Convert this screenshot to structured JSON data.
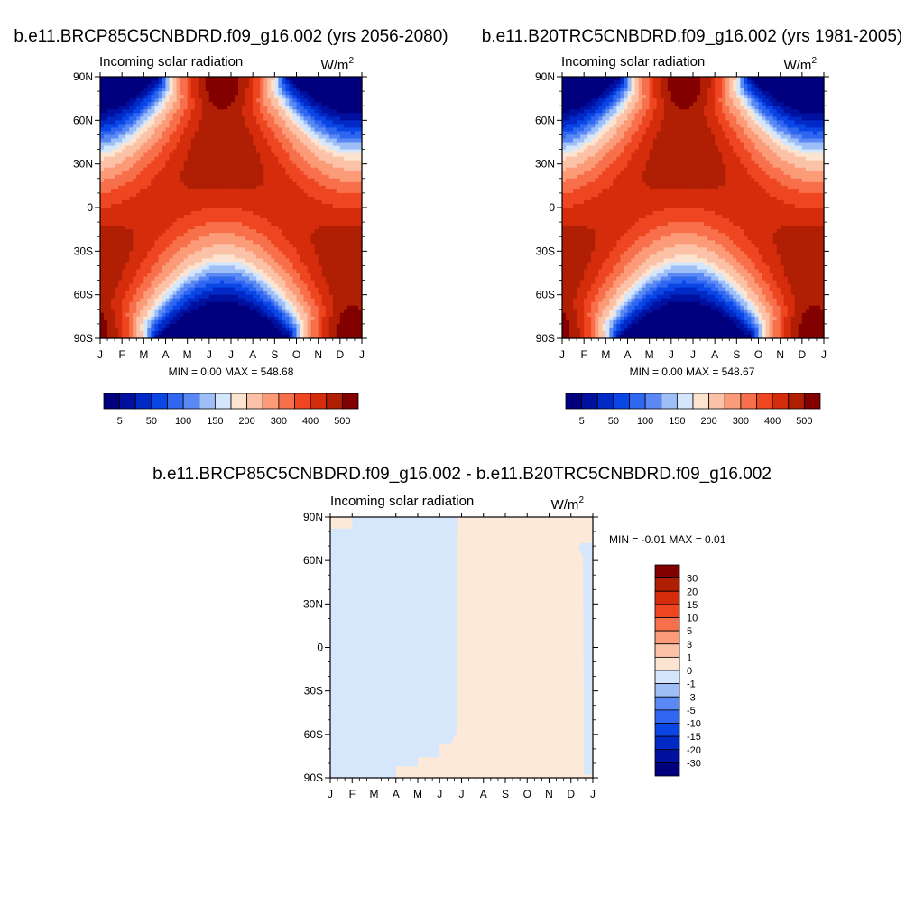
{
  "chart_data": [
    {
      "type": "heatmap",
      "title": "b.e11.BRCP85C5CNBDRD.f09_g16.002 (yrs 2056-2080)",
      "subtitle": "Incoming solar radiation",
      "units_base": "W/m",
      "units_exp": "2",
      "x_ticks": [
        "J",
        "F",
        "M",
        "A",
        "M",
        "J",
        "J",
        "A",
        "S",
        "O",
        "N",
        "D",
        "J"
      ],
      "y_ticks": [
        "90N",
        "60N",
        "30N",
        "0",
        "30S",
        "60S",
        "90S"
      ],
      "ylim": [
        -90,
        90
      ],
      "stats_text": "MIN =   0.00 MAX = 548.68",
      "colorbar_labels": [
        "5",
        "50",
        "100",
        "150",
        "200",
        "300",
        "400",
        "500"
      ],
      "colorbar_levels": [
        5,
        25,
        50,
        75,
        100,
        125,
        150,
        175,
        200,
        250,
        300,
        350,
        400,
        450,
        500
      ]
    },
    {
      "type": "heatmap",
      "title": "b.e11.B20TRC5CNBDRD.f09_g16.002 (yrs 1981-2005)",
      "subtitle": "Incoming solar radiation",
      "units_base": "W/m",
      "units_exp": "2",
      "x_ticks": [
        "J",
        "F",
        "M",
        "A",
        "M",
        "J",
        "J",
        "A",
        "S",
        "O",
        "N",
        "D",
        "J"
      ],
      "y_ticks": [
        "90N",
        "60N",
        "30N",
        "0",
        "30S",
        "60S",
        "90S"
      ],
      "ylim": [
        -90,
        90
      ],
      "stats_text": "MIN =   0.00 MAX = 548.67",
      "colorbar_labels": [
        "5",
        "50",
        "100",
        "150",
        "200",
        "300",
        "400",
        "500"
      ],
      "colorbar_levels": [
        5,
        25,
        50,
        75,
        100,
        125,
        150,
        175,
        200,
        250,
        300,
        350,
        400,
        450,
        500
      ]
    },
    {
      "type": "heatmap",
      "title": "b.e11.BRCP85C5CNBDRD.f09_g16.002 - b.e11.B20TRC5CNBDRD.f09_g16.002",
      "subtitle": "Incoming solar radiation",
      "units_base": "W/m",
      "units_exp": "2",
      "x_ticks": [
        "J",
        "F",
        "M",
        "A",
        "M",
        "J",
        "J",
        "A",
        "S",
        "O",
        "N",
        "D",
        "J"
      ],
      "y_ticks": [
        "90N",
        "60N",
        "30N",
        "0",
        "30S",
        "60S",
        "90S"
      ],
      "ylim": [
        -90,
        90
      ],
      "stats_text": "MIN =  -0.01 MAX =   0.01",
      "colorbar_labels": [
        "30",
        "20",
        "15",
        "10",
        "5",
        "3",
        "1",
        "0",
        "-1",
        "-3",
        "-5",
        "-10",
        "-15",
        "-20",
        "-30"
      ],
      "colorbar_levels": [
        -30,
        -20,
        -15,
        -10,
        -5,
        -3,
        -1,
        0,
        1,
        3,
        5,
        10,
        15,
        20,
        30
      ]
    }
  ],
  "colors": {
    "abs_palette": [
      "#00007f",
      "#00109f",
      "#0029c6",
      "#0a46e6",
      "#2f67f0",
      "#5a88f4",
      "#9dbef7",
      "#d4e6fb",
      "#fde4d0",
      "#fcc2a8",
      "#fc9b78",
      "#f7704b",
      "#ee4621",
      "#d52d0c",
      "#b01e04",
      "#820000"
    ],
    "diff_palette": [
      "#820000",
      "#b01e04",
      "#d52d0c",
      "#ee4621",
      "#f7704b",
      "#fc9b78",
      "#fcc2a8",
      "#fde4d0",
      "#d4e6fb",
      "#9dbef7",
      "#5a88f4",
      "#2f67f0",
      "#0a46e6",
      "#0029c6",
      "#00109f",
      "#00007f"
    ],
    "diff_positive": "#fde9d7",
    "diff_negative": "#d6e7fb"
  }
}
